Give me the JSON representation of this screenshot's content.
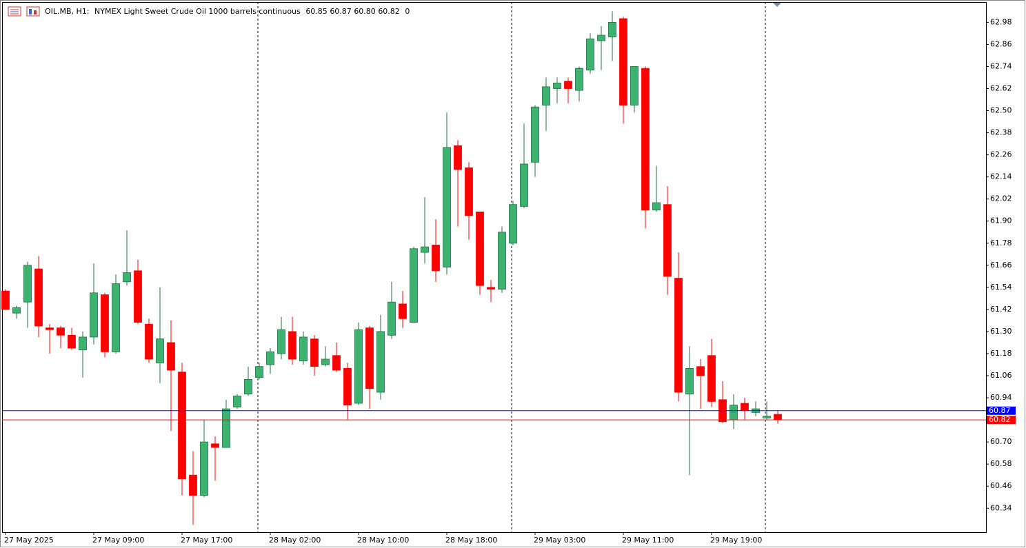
{
  "header": {
    "symbol": "OIL.MB, H1:",
    "description": "NYMEX Light Sweet Crude Oil 1000 barrels continuous",
    "ohlc": [
      "60.85",
      "60.87",
      "60.80",
      "60.82"
    ],
    "volume": "0"
  },
  "chart_data": {
    "type": "candlestick",
    "categories": [
      "27 May 2025",
      null,
      null,
      null,
      null,
      null,
      null,
      null,
      "27 May 09:00",
      null,
      null,
      null,
      null,
      null,
      null,
      null,
      "27 May 17:00",
      null,
      null,
      null,
      null,
      null,
      null,
      null,
      "28 May 02:00",
      null,
      null,
      null,
      null,
      null,
      null,
      null,
      "28 May 10:00",
      null,
      null,
      null,
      null,
      null,
      null,
      null,
      "28 May 18:00",
      null,
      null,
      null,
      null,
      null,
      null,
      null,
      "29 May 03:00",
      null,
      null,
      null,
      null,
      null,
      null,
      null,
      "29 May 11:00",
      null,
      null,
      null,
      null,
      null,
      null,
      null,
      "29 May 19:00",
      null,
      null,
      null,
      null,
      null,
      null
    ],
    "open": [
      61.52,
      61.4,
      61.46,
      61.64,
      61.32,
      61.32,
      61.28,
      61.2,
      61.27,
      61.5,
      61.19,
      61.57,
      61.63,
      61.34,
      61.13,
      61.24,
      61.08,
      60.52,
      60.41,
      60.69,
      60.67,
      60.89,
      60.96,
      61.05,
      61.12,
      61.18,
      61.3,
      61.14,
      61.26,
      61.12,
      61.17,
      61.1,
      60.91,
      61.32,
      60.97,
      61.28,
      61.45,
      61.35,
      61.73,
      61.77,
      61.65,
      62.31,
      62.19,
      61.95,
      61.54,
      61.53,
      61.78,
      61.98,
      62.22,
      62.53,
      62.62,
      62.66,
      62.61,
      62.72,
      62.88,
      62.9,
      63.0,
      62.53,
      62.73,
      61.96,
      61.99,
      61.59,
      60.96,
      61.11,
      61.17,
      60.93,
      60.82,
      60.91,
      60.86,
      60.83,
      60.85
    ],
    "high": [
      61.53,
      61.44,
      61.68,
      61.71,
      61.34,
      61.33,
      61.32,
      61.3,
      61.67,
      61.51,
      61.61,
      61.85,
      61.69,
      61.37,
      61.54,
      61.36,
      61.13,
      60.65,
      60.82,
      60.73,
      60.93,
      60.96,
      61.11,
      61.13,
      61.21,
      61.38,
      61.38,
      61.3,
      61.28,
      61.22,
      61.24,
      61.13,
      61.35,
      61.33,
      61.39,
      61.57,
      61.52,
      61.76,
      62.03,
      61.91,
      62.49,
      62.34,
      62.22,
      61.95,
      61.58,
      61.87,
      62.01,
      62.43,
      62.53,
      62.68,
      62.68,
      62.68,
      62.74,
      62.92,
      62.96,
      63.04,
      63.01,
      62.74,
      62.74,
      62.2,
      62.09,
      61.73,
      61.22,
      61.15,
      61.26,
      61.03,
      60.96,
      60.94,
      60.92,
      60.92,
      60.87
    ],
    "low": [
      61.42,
      61.37,
      61.32,
      61.27,
      61.18,
      61.21,
      61.2,
      61.05,
      61.23,
      61.16,
      61.18,
      61.55,
      61.34,
      61.13,
      61.02,
      60.76,
      60.41,
      60.25,
      60.4,
      60.49,
      60.67,
      60.88,
      60.95,
      61.04,
      61.07,
      61.15,
      61.12,
      61.12,
      61.06,
      61.11,
      61.08,
      60.82,
      60.9,
      60.88,
      60.93,
      61.26,
      61.32,
      61.35,
      61.67,
      61.57,
      61.61,
      61.87,
      61.8,
      61.5,
      61.46,
      61.51,
      61.77,
      61.97,
      62.14,
      62.39,
      62.54,
      62.54,
      62.55,
      62.7,
      62.72,
      62.77,
      62.43,
      62.49,
      61.86,
      61.95,
      61.5,
      60.92,
      60.52,
      60.88,
      60.89,
      60.8,
      60.77,
      60.82,
      60.84,
      60.82,
      60.8
    ],
    "close": [
      61.42,
      61.43,
      61.66,
      61.33,
      61.31,
      61.28,
      61.21,
      61.27,
      61.51,
      61.19,
      61.56,
      61.62,
      61.35,
      61.15,
      61.26,
      61.09,
      60.5,
      60.41,
      60.7,
      60.67,
      60.88,
      60.95,
      61.04,
      61.11,
      61.19,
      61.31,
      61.15,
      61.27,
      61.11,
      61.15,
      61.09,
      60.9,
      61.31,
      60.99,
      61.3,
      61.46,
      61.37,
      61.75,
      61.76,
      61.63,
      62.3,
      62.18,
      61.93,
      61.55,
      61.53,
      61.84,
      61.99,
      62.21,
      62.52,
      62.63,
      62.65,
      62.62,
      62.73,
      62.89,
      62.91,
      62.98,
      62.53,
      62.74,
      61.96,
      62.0,
      61.6,
      60.97,
      61.1,
      61.06,
      60.92,
      60.81,
      60.9,
      60.87,
      60.88,
      60.84,
      60.82
    ],
    "up_color": "#3cb371",
    "down_color": "#ff0000",
    "ylim": [
      60.21,
      63.09
    ],
    "yticks": [
      62.98,
      62.86,
      62.74,
      62.62,
      {
        "value": 62.5,
        "label": "62.50"
      },
      62.38,
      62.26,
      62.14,
      62.02,
      {
        "value": 61.9,
        "label": "61.90"
      },
      61.78,
      61.66,
      61.54,
      61.42,
      {
        "value": 61.3,
        "label": "61.30"
      },
      61.18,
      61.06,
      60.94,
      {
        "value": 60.7,
        "label": "60.70"
      },
      60.58,
      60.46,
      60.34
    ],
    "ask": {
      "value": 60.87,
      "color": "#0000ff"
    },
    "bid": {
      "value": 60.82,
      "color": "#ff0000"
    }
  }
}
